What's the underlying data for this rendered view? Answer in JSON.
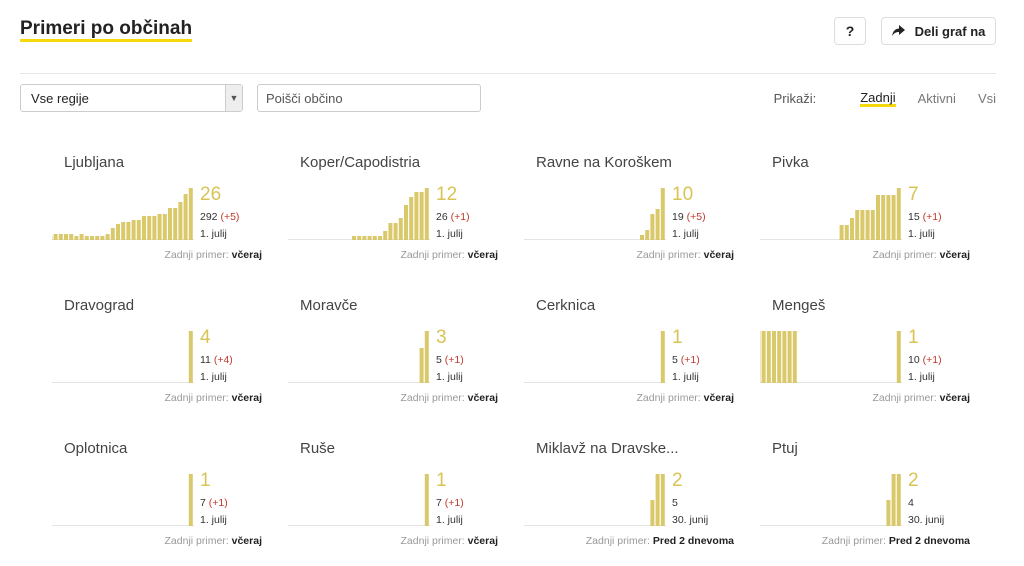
{
  "header": {
    "title": "Primeri po občinah",
    "help_label": "?",
    "share_label": "Deli graf na",
    "share_icon": "share-arrow-icon"
  },
  "filters": {
    "region_value": "Vse regije",
    "search_placeholder": "Poišči občino",
    "show_label": "Prikaži:",
    "options": [
      "Zadnji",
      "Aktivni",
      "Vsi"
    ],
    "active_option": "Zadnji"
  },
  "colors": {
    "bar": "#d9c96a",
    "accent": "#f5d90a",
    "delta": "#c0392b",
    "big_number": "#d8c455"
  },
  "last_label": "Zadnji primer:",
  "cards": [
    {
      "name": "Ljubljana",
      "big": "26",
      "total": "292",
      "delta": "(+5)",
      "date": "1. julij",
      "last": "včeraj",
      "series": [
        2,
        3,
        3,
        3,
        3,
        2,
        3,
        2,
        2,
        2,
        2,
        3,
        6,
        8,
        9,
        9,
        10,
        10,
        12,
        12,
        12,
        13,
        13,
        16,
        16,
        19,
        23,
        26
      ]
    },
    {
      "name": "Koper/Capodistria",
      "big": "12",
      "total": "26",
      "delta": "(+1)",
      "date": "1. julij",
      "last": "včeraj",
      "series": [
        1,
        1,
        1,
        1,
        1,
        1,
        2,
        4,
        4,
        5,
        8,
        10,
        11,
        11,
        12
      ]
    },
    {
      "name": "Ravne na Koroškem",
      "big": "10",
      "total": "19",
      "delta": "(+5)",
      "date": "1. julij",
      "last": "včeraj",
      "series": [
        1,
        2,
        5,
        6,
        10
      ]
    },
    {
      "name": "Pivka",
      "big": "7",
      "total": "15",
      "delta": "(+1)",
      "date": "1. julij",
      "last": "včeraj",
      "series": [
        2,
        2,
        3,
        4,
        4,
        4,
        4,
        6,
        6,
        6,
        6,
        7
      ]
    },
    {
      "name": "Dravograd",
      "big": "4",
      "total": "11",
      "delta": "(+4)",
      "date": "1. julij",
      "last": "včeraj",
      "series": [
        4
      ]
    },
    {
      "name": "Moravče",
      "big": "3",
      "total": "5",
      "delta": "(+1)",
      "date": "1. julij",
      "last": "včeraj",
      "series": [
        2,
        3
      ]
    },
    {
      "name": "Cerknica",
      "big": "1",
      "total": "5",
      "delta": "(+1)",
      "date": "1. julij",
      "last": "včeraj",
      "series": [
        1
      ]
    },
    {
      "name": "Mengeš",
      "big": "1",
      "total": "10",
      "delta": "(+1)",
      "date": "1. julij",
      "last": "včeraj",
      "series": [
        1,
        1,
        1,
        1,
        1,
        1,
        1,
        1,
        1,
        1,
        1,
        1,
        1,
        1,
        0,
        0,
        0,
        0,
        0,
        0,
        0,
        0,
        0,
        0,
        0,
        0,
        0,
        0,
        0,
        0,
        0,
        0,
        0,
        1
      ]
    },
    {
      "name": "Oplotnica",
      "big": "1",
      "total": "7",
      "delta": "(+1)",
      "date": "1. julij",
      "last": "včeraj",
      "series": [
        1
      ]
    },
    {
      "name": "Ruše",
      "big": "1",
      "total": "7",
      "delta": "(+1)",
      "date": "1. julij",
      "last": "včeraj",
      "series": [
        1
      ]
    },
    {
      "name": "Miklavž na Dravske...",
      "big": "2",
      "total": "5",
      "delta": "",
      "date": "30. junij",
      "last": "Pred 2 dnevoma",
      "series": [
        1,
        2,
        2
      ]
    },
    {
      "name": "Ptuj",
      "big": "2",
      "total": "4",
      "delta": "",
      "date": "30. junij",
      "last": "Pred 2 dnevoma",
      "series": [
        1,
        2,
        2
      ]
    }
  ]
}
